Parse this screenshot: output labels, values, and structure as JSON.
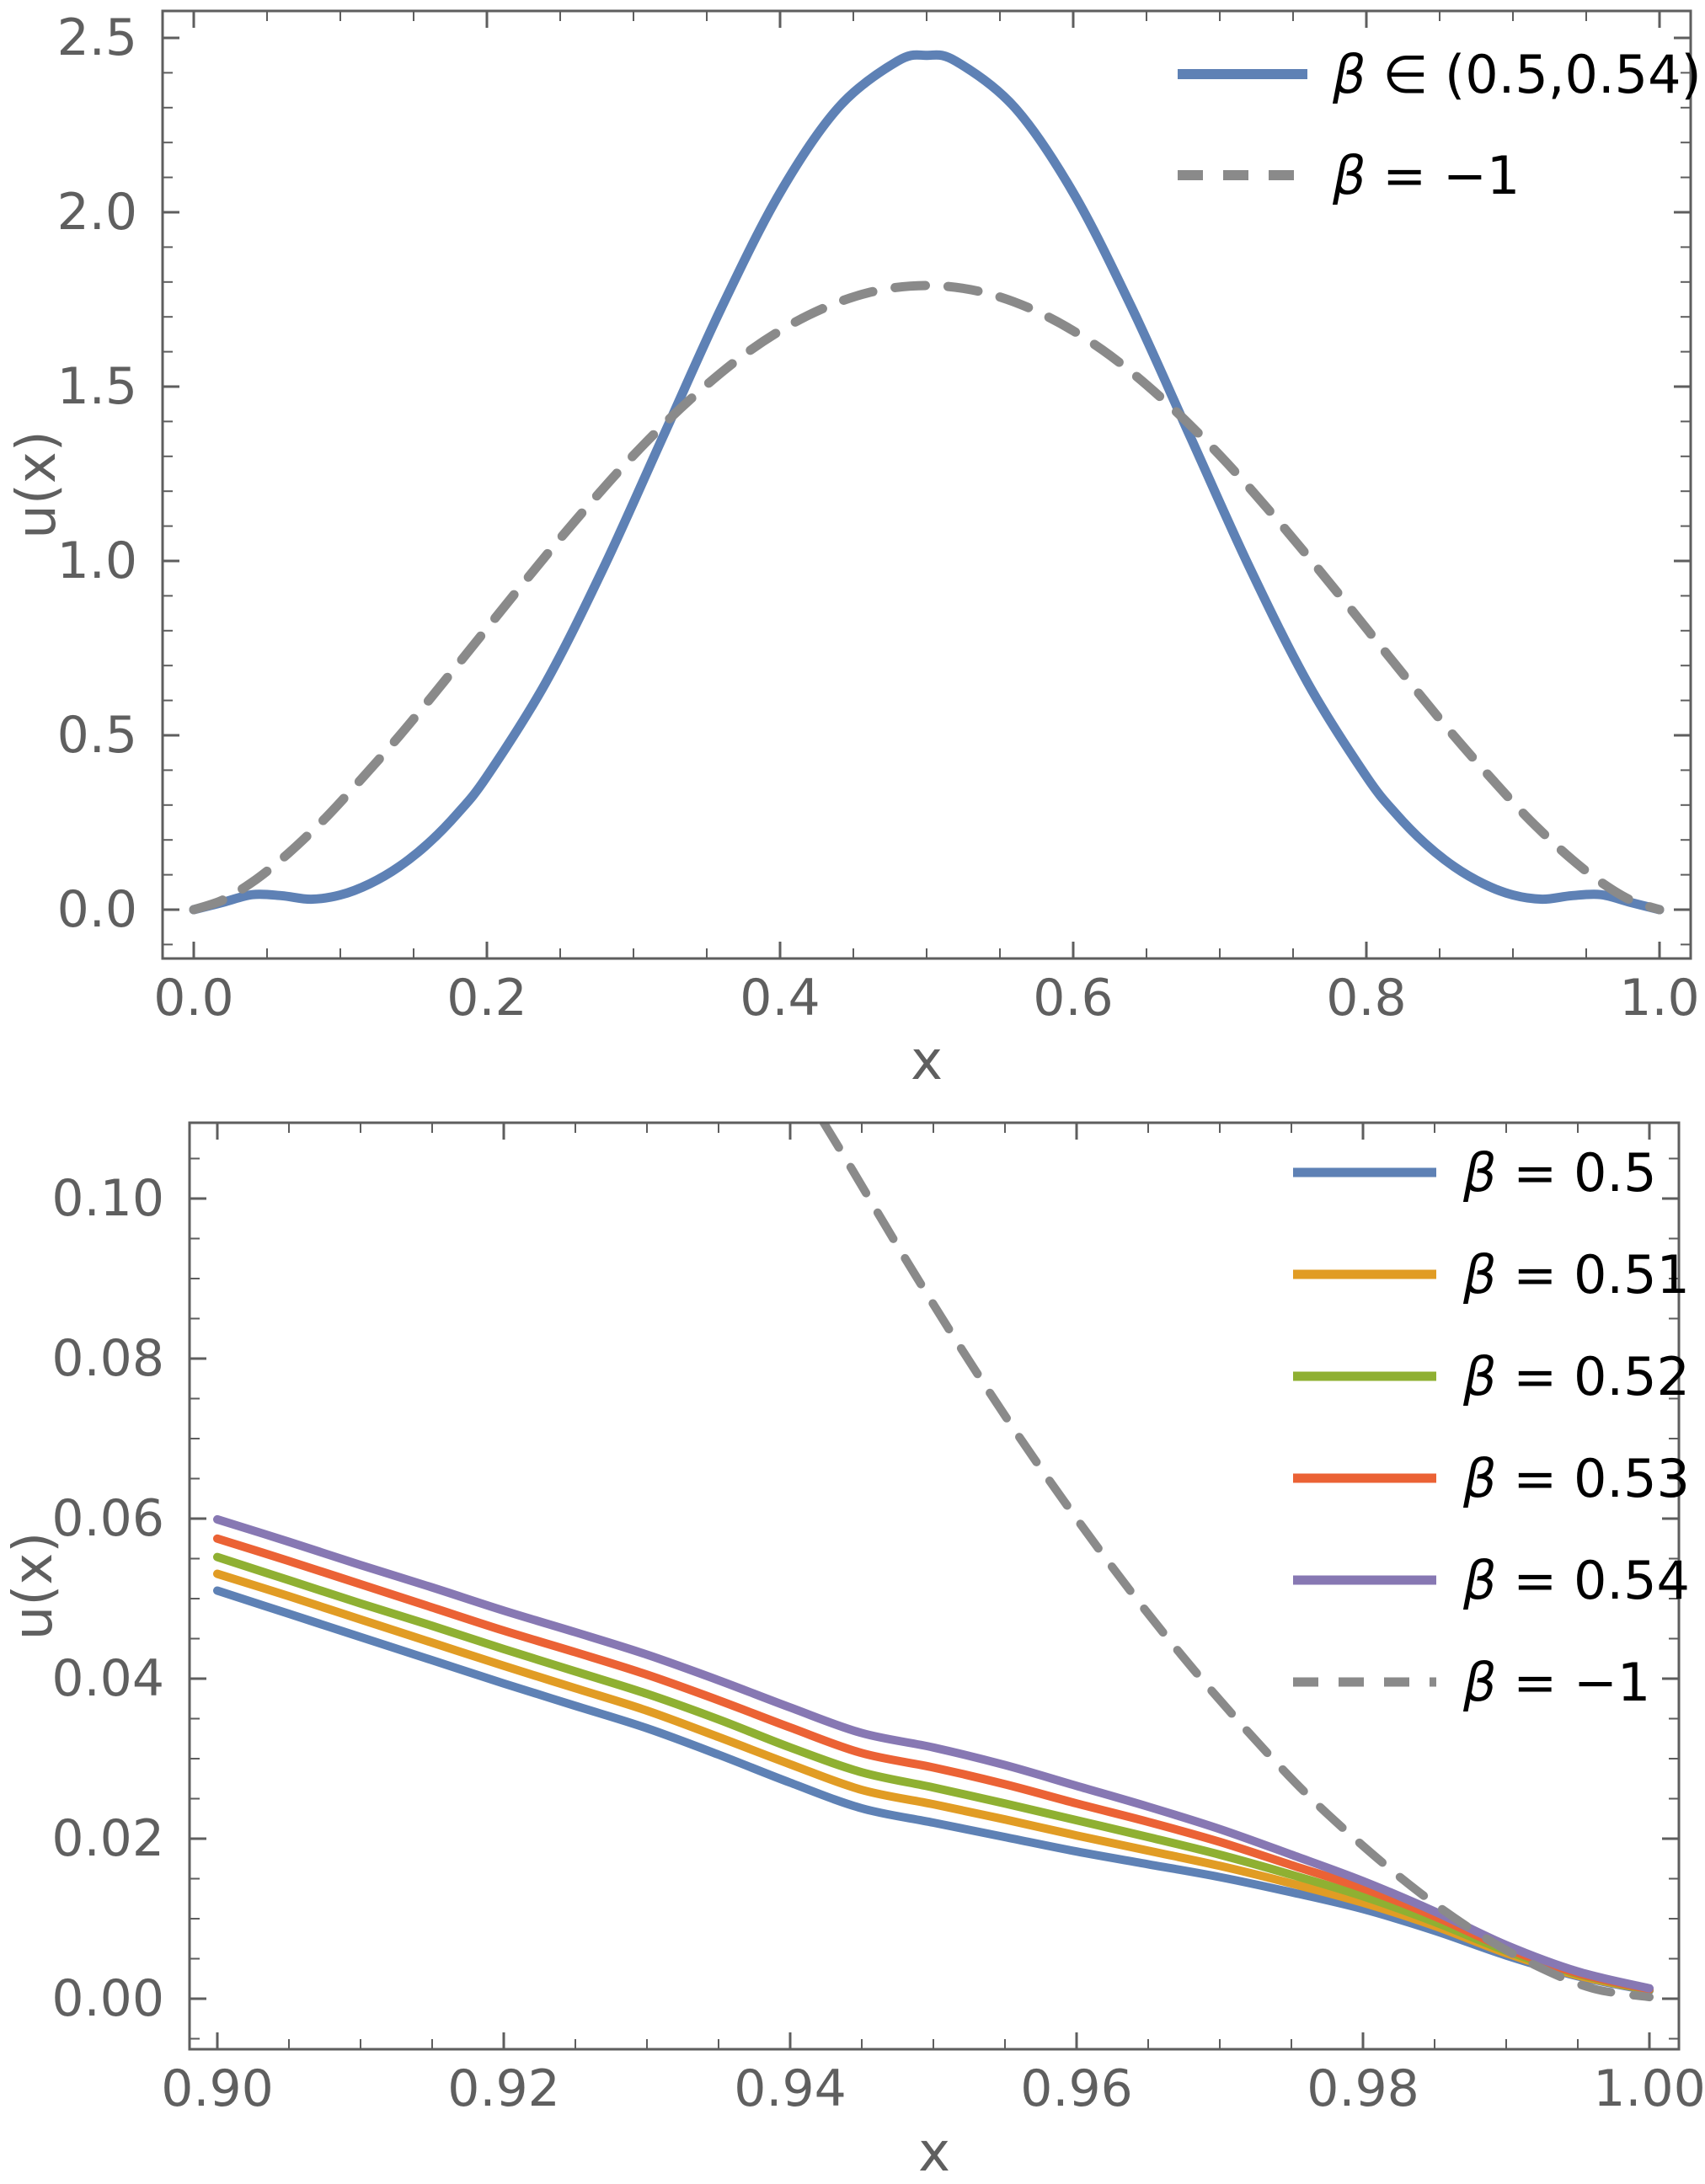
{
  "page": {
    "background": "#ffffff"
  },
  "colors": {
    "blue": "#5E81B5",
    "orange": "#E19C24",
    "green": "#8FB032",
    "red": "#EB6235",
    "purple": "#8778B3",
    "dash_gray": "#8A8A8A",
    "frame": "#5E5E5E",
    "tick_label": "#5F5F5F",
    "legend_text": "#000000"
  },
  "chart_data": [
    {
      "id": "top",
      "type": "line",
      "title": "",
      "xlabel": "x",
      "ylabel": "u(x)",
      "xlim": [
        -0.021,
        1.021
      ],
      "ylim": [
        -0.14,
        2.58
      ],
      "grid": false,
      "legend_position": "top-right",
      "xticks": {
        "labels": [
          "0.0",
          "0.2",
          "0.4",
          "0.6",
          "0.8",
          "1.0"
        ],
        "values": [
          0,
          0.2,
          0.4,
          0.6,
          0.8,
          1.0
        ],
        "minor": [
          0.05,
          0.1,
          0.15,
          0.25,
          0.3,
          0.35,
          0.45,
          0.5,
          0.55,
          0.65,
          0.7,
          0.75,
          0.85,
          0.9,
          0.95
        ]
      },
      "yticks": {
        "labels": [
          "0.0",
          "0.5",
          "1.0",
          "1.5",
          "2.0",
          "2.5"
        ],
        "values": [
          0,
          0.5,
          1.0,
          1.5,
          2.0,
          2.5
        ],
        "minor": [
          -0.1,
          0.1,
          0.2,
          0.3,
          0.4,
          0.6,
          0.7,
          0.8,
          0.9,
          1.1,
          1.2,
          1.3,
          1.4,
          1.6,
          1.7,
          1.8,
          1.9,
          2.1,
          2.2,
          2.3,
          2.4
        ]
      },
      "series": [
        {
          "name": "beta-in-0.5-0.54",
          "legend": "β ∈ (0.5,0.54)",
          "color": "blue",
          "dashed": false,
          "width": 11,
          "points": [
            [
              0,
              0
            ],
            [
              0.02,
              0.021
            ],
            [
              0.04,
              0.043
            ],
            [
              0.06,
              0.04
            ],
            [
              0.08,
              0.03
            ],
            [
              0.1,
              0.042
            ],
            [
              0.12,
              0.074
            ],
            [
              0.14,
              0.123
            ],
            [
              0.16,
              0.19
            ],
            [
              0.18,
              0.276
            ],
            [
              0.2,
              0.382
            ],
            [
              0.24,
              0.65
            ],
            [
              0.28,
              0.984
            ],
            [
              0.32,
              1.355
            ],
            [
              0.36,
              1.726
            ],
            [
              0.4,
              2.056
            ],
            [
              0.44,
              2.301
            ],
            [
              0.48,
              2.433
            ],
            [
              0.5,
              2.45
            ],
            [
              0.52,
              2.433
            ],
            [
              0.56,
              2.301
            ],
            [
              0.6,
              2.056
            ],
            [
              0.64,
              1.726
            ],
            [
              0.68,
              1.355
            ],
            [
              0.72,
              0.984
            ],
            [
              0.76,
              0.65
            ],
            [
              0.8,
              0.382
            ],
            [
              0.82,
              0.276
            ],
            [
              0.84,
              0.19
            ],
            [
              0.86,
              0.123
            ],
            [
              0.88,
              0.074
            ],
            [
              0.9,
              0.042
            ],
            [
              0.92,
              0.03
            ],
            [
              0.94,
              0.04
            ],
            [
              0.96,
              0.043
            ],
            [
              0.98,
              0.021
            ],
            [
              1,
              0
            ]
          ]
        },
        {
          "name": "beta-minus-1",
          "legend": "β = −1",
          "color": "dash_gray",
          "dashed": true,
          "width": 11,
          "points": [
            [
              0,
              0
            ],
            [
              0.02,
              0.028
            ],
            [
              0.04,
              0.079
            ],
            [
              0.06,
              0.145
            ],
            [
              0.08,
              0.222
            ],
            [
              0.1,
              0.308
            ],
            [
              0.14,
              0.497
            ],
            [
              0.18,
              0.702
            ],
            [
              0.22,
              0.911
            ],
            [
              0.26,
              1.114
            ],
            [
              0.3,
              1.303
            ],
            [
              0.34,
              1.468
            ],
            [
              0.38,
              1.605
            ],
            [
              0.42,
              1.706
            ],
            [
              0.46,
              1.769
            ],
            [
              0.5,
              1.79
            ],
            [
              0.54,
              1.769
            ],
            [
              0.58,
              1.706
            ],
            [
              0.62,
              1.605
            ],
            [
              0.66,
              1.468
            ],
            [
              0.7,
              1.303
            ],
            [
              0.74,
              1.114
            ],
            [
              0.78,
              0.911
            ],
            [
              0.82,
              0.702
            ],
            [
              0.86,
              0.497
            ],
            [
              0.9,
              0.308
            ],
            [
              0.92,
              0.222
            ],
            [
              0.94,
              0.145
            ],
            [
              0.96,
              0.079
            ],
            [
              0.98,
              0.028
            ],
            [
              1,
              0
            ]
          ]
        }
      ]
    },
    {
      "id": "bottom",
      "type": "line",
      "title": "",
      "xlabel": "x",
      "ylabel": "u(x)",
      "xlim": [
        0.898,
        1.002
      ],
      "ylim": [
        -0.0062,
        0.1095
      ],
      "grid": false,
      "legend_position": "top-right",
      "xticks": {
        "labels": [
          "0.90",
          "0.92",
          "0.94",
          "0.96",
          "0.98",
          "1.00"
        ],
        "values": [
          0.9,
          0.92,
          0.94,
          0.96,
          0.98,
          1.0
        ],
        "minor": [
          0.905,
          0.91,
          0.915,
          0.925,
          0.93,
          0.935,
          0.945,
          0.95,
          0.955,
          0.965,
          0.97,
          0.975,
          0.985,
          0.99,
          0.995
        ]
      },
      "yticks": {
        "labels": [
          "0.00",
          "0.02",
          "0.04",
          "0.06",
          "0.08",
          "0.10"
        ],
        "values": [
          0,
          0.02,
          0.04,
          0.06,
          0.08,
          0.1
        ],
        "minor": [
          -0.005,
          0.005,
          0.01,
          0.015,
          0.025,
          0.03,
          0.035,
          0.045,
          0.05,
          0.055,
          0.065,
          0.07,
          0.075,
          0.085,
          0.09,
          0.095,
          0.105
        ]
      },
      "x_shared": [
        0.9,
        0.905,
        0.91,
        0.915,
        0.92,
        0.925,
        0.93,
        0.935,
        0.94,
        0.945,
        0.95,
        0.955,
        0.96,
        0.965,
        0.97,
        0.975,
        0.98,
        0.985,
        0.99,
        0.995,
        1.0
      ],
      "series": [
        {
          "name": "beta-0.5",
          "legend": "β = 0.5",
          "color": "blue",
          "dashed": false,
          "width": 10,
          "values": [
            0.051,
            0.0481,
            0.0452,
            0.0423,
            0.0394,
            0.0366,
            0.0338,
            0.0305,
            0.027,
            0.0238,
            0.022,
            0.0202,
            0.0184,
            0.0168,
            0.0152,
            0.0133,
            0.0112,
            0.0085,
            0.0054,
            0.0028,
            0.001
          ]
        },
        {
          "name": "beta-0.51",
          "legend": "β = 0.51",
          "color": "orange",
          "dashed": false,
          "width": 10,
          "values": [
            0.0531,
            0.0503,
            0.0474,
            0.0445,
            0.0416,
            0.0388,
            0.036,
            0.0327,
            0.0293,
            0.0261,
            0.0243,
            0.0224,
            0.0204,
            0.0185,
            0.0166,
            0.0144,
            0.012,
            0.0091,
            0.0057,
            0.0029,
            0.0011
          ]
        },
        {
          "name": "beta-0.52",
          "legend": "β = 0.52",
          "color": "green",
          "dashed": false,
          "width": 10,
          "values": [
            0.0552,
            0.0523,
            0.0494,
            0.0466,
            0.0437,
            0.0409,
            0.0381,
            0.0349,
            0.0314,
            0.0283,
            0.0264,
            0.0244,
            0.0223,
            0.0202,
            0.018,
            0.0155,
            0.0128,
            0.0096,
            0.006,
            0.0031,
            0.0011
          ]
        },
        {
          "name": "beta-0.53",
          "legend": "β = 0.53",
          "color": "red",
          "dashed": false,
          "width": 10,
          "values": [
            0.0575,
            0.0547,
            0.0518,
            0.0489,
            0.046,
            0.0433,
            0.0405,
            0.0373,
            0.0339,
            0.0307,
            0.0289,
            0.0268,
            0.0244,
            0.0221,
            0.0196,
            0.0167,
            0.0138,
            0.0103,
            0.0063,
            0.0032,
            0.0012
          ]
        },
        {
          "name": "beta-0.54",
          "legend": "β = 0.54",
          "color": "purple",
          "dashed": false,
          "width": 10,
          "values": [
            0.0599,
            0.0571,
            0.0542,
            0.0514,
            0.0485,
            0.0458,
            0.043,
            0.0398,
            0.0364,
            0.0332,
            0.0314,
            0.0292,
            0.0266,
            0.024,
            0.0212,
            0.018,
            0.0147,
            0.0109,
            0.0067,
            0.0034,
            0.0013
          ]
        },
        {
          "name": "beta-minus-1",
          "legend": "β = −1",
          "color": "dash_gray",
          "dashed": true,
          "width": 10,
          "points": [
            [
              0.9423,
              0.1096
            ],
            [
              0.944,
              0.1046
            ],
            [
              0.948,
              0.0926
            ],
            [
              0.952,
              0.0811
            ],
            [
              0.956,
              0.0702
            ],
            [
              0.96,
              0.06
            ],
            [
              0.964,
              0.0504
            ],
            [
              0.968,
              0.0415
            ],
            [
              0.972,
              0.0333
            ],
            [
              0.976,
              0.0257
            ],
            [
              0.98,
              0.0191
            ],
            [
              0.984,
              0.0132
            ],
            [
              0.988,
              0.0082
            ],
            [
              0.992,
              0.0042
            ],
            [
              0.996,
              0.0013
            ],
            [
              1.0,
              0.0002
            ]
          ]
        }
      ]
    }
  ]
}
